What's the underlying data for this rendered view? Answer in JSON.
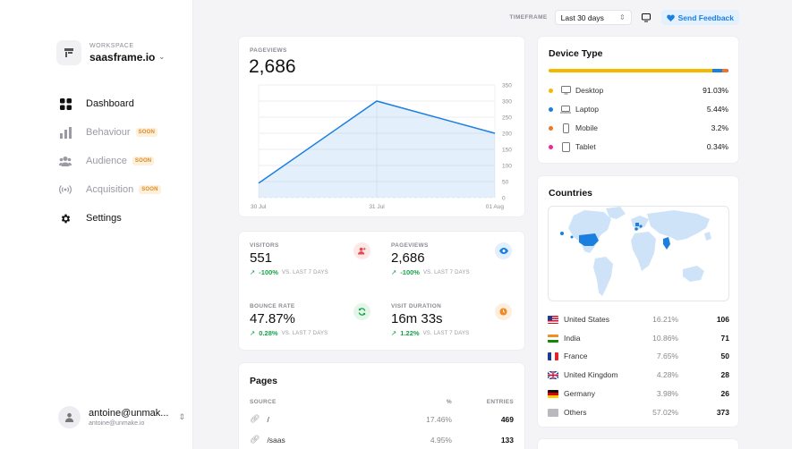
{
  "workspace": {
    "kicker": "WORKSPACE",
    "name": "saasframe.io"
  },
  "nav": [
    {
      "label": "Dashboard",
      "badge": "",
      "icon": "grid-icon"
    },
    {
      "label": "Behaviour",
      "badge": "SOON",
      "icon": "bar-chart-icon"
    },
    {
      "label": "Audience",
      "badge": "SOON",
      "icon": "users-icon"
    },
    {
      "label": "Acquisition",
      "badge": "SOON",
      "icon": "broadcast-icon"
    },
    {
      "label": "Settings",
      "badge": "",
      "icon": "gear-icon"
    }
  ],
  "user": {
    "name": "antoine@unmak...",
    "email": "antoine@unmake.io"
  },
  "topbar": {
    "timeframe_label": "TIMEFRAME",
    "timeframe_value": "Last 30 days",
    "feedback_label": "Send Feedback"
  },
  "pageviews_chart": {
    "kicker": "PAGEVIEWS",
    "total": "2,686",
    "chart_data": {
      "type": "area",
      "x": [
        "30 Jul",
        "31 Jul",
        "01 Aug"
      ],
      "series": [
        {
          "values": [
            45,
            300,
            200
          ]
        }
      ],
      "ylim": [
        0,
        350
      ],
      "yticks": [
        "350",
        "300",
        "250",
        "200",
        "150",
        "100",
        "50",
        "0"
      ],
      "xlabel": "",
      "ylabel": ""
    }
  },
  "stats": [
    {
      "kicker": "VISITORS",
      "value": "551",
      "delta": "-100%",
      "delta_text": "VS. LAST 7 DAYS",
      "icon": "user-plus-icon",
      "color": "#e5484d",
      "bg": "#fde8e8"
    },
    {
      "kicker": "PAGEVIEWS",
      "value": "2,686",
      "delta": "-100%",
      "delta_text": "VS. LAST 7 DAYS",
      "icon": "eye-icon",
      "color": "#1b7fe0",
      "bg": "#e2effd"
    },
    {
      "kicker": "BOUNCE RATE",
      "value": "47.87%",
      "delta": "0.28%",
      "delta_text": "VS. LAST 7 DAYS",
      "icon": "refresh-icon",
      "color": "#16a34a",
      "bg": "#e3f6e9"
    },
    {
      "kicker": "VISIT DURATION",
      "value": "16m 33s",
      "delta": "1.22%",
      "delta_text": "VS. LAST 7 DAYS",
      "icon": "clock-icon",
      "color": "#f08a24",
      "bg": "#fdeedd"
    }
  ],
  "pages": {
    "title": "Pages",
    "headers": {
      "source": "SOURCE",
      "pct": "%",
      "entries": "ENTRIES"
    },
    "rows": [
      {
        "path": "/",
        "pct": "17.46%",
        "entries": "469"
      },
      {
        "path": "/saas",
        "pct": "4.95%",
        "entries": "133"
      }
    ]
  },
  "device": {
    "title": "Device Type",
    "rows": [
      {
        "name": "Desktop",
        "pct": "91.03%",
        "share": 91.03,
        "color": "#f5b800",
        "icon": "monitor-icon"
      },
      {
        "name": "Laptop",
        "pct": "5.44%",
        "share": 5.44,
        "color": "#1b7fe0",
        "icon": "laptop-icon"
      },
      {
        "name": "Mobile",
        "pct": "3.2%",
        "share": 3.2,
        "color": "#f0761f",
        "icon": "mobile-icon"
      },
      {
        "name": "Tablet",
        "pct": "0.34%",
        "share": 0.34,
        "color": "#e8289c",
        "icon": "tablet-icon"
      }
    ]
  },
  "countries": {
    "title": "Countries",
    "rows": [
      {
        "name": "United States",
        "pct": "16.21%",
        "count": "106",
        "flag": "us"
      },
      {
        "name": "India",
        "pct": "10.86%",
        "count": "71",
        "flag": "in"
      },
      {
        "name": "France",
        "pct": "7.65%",
        "count": "50",
        "flag": "fr"
      },
      {
        "name": "United Kingdom",
        "pct": "4.28%",
        "count": "28",
        "flag": "gb"
      },
      {
        "name": "Germany",
        "pct": "3.98%",
        "count": "26",
        "flag": "de"
      },
      {
        "name": "Others",
        "pct": "57.02%",
        "count": "373",
        "flag": "other"
      }
    ]
  }
}
